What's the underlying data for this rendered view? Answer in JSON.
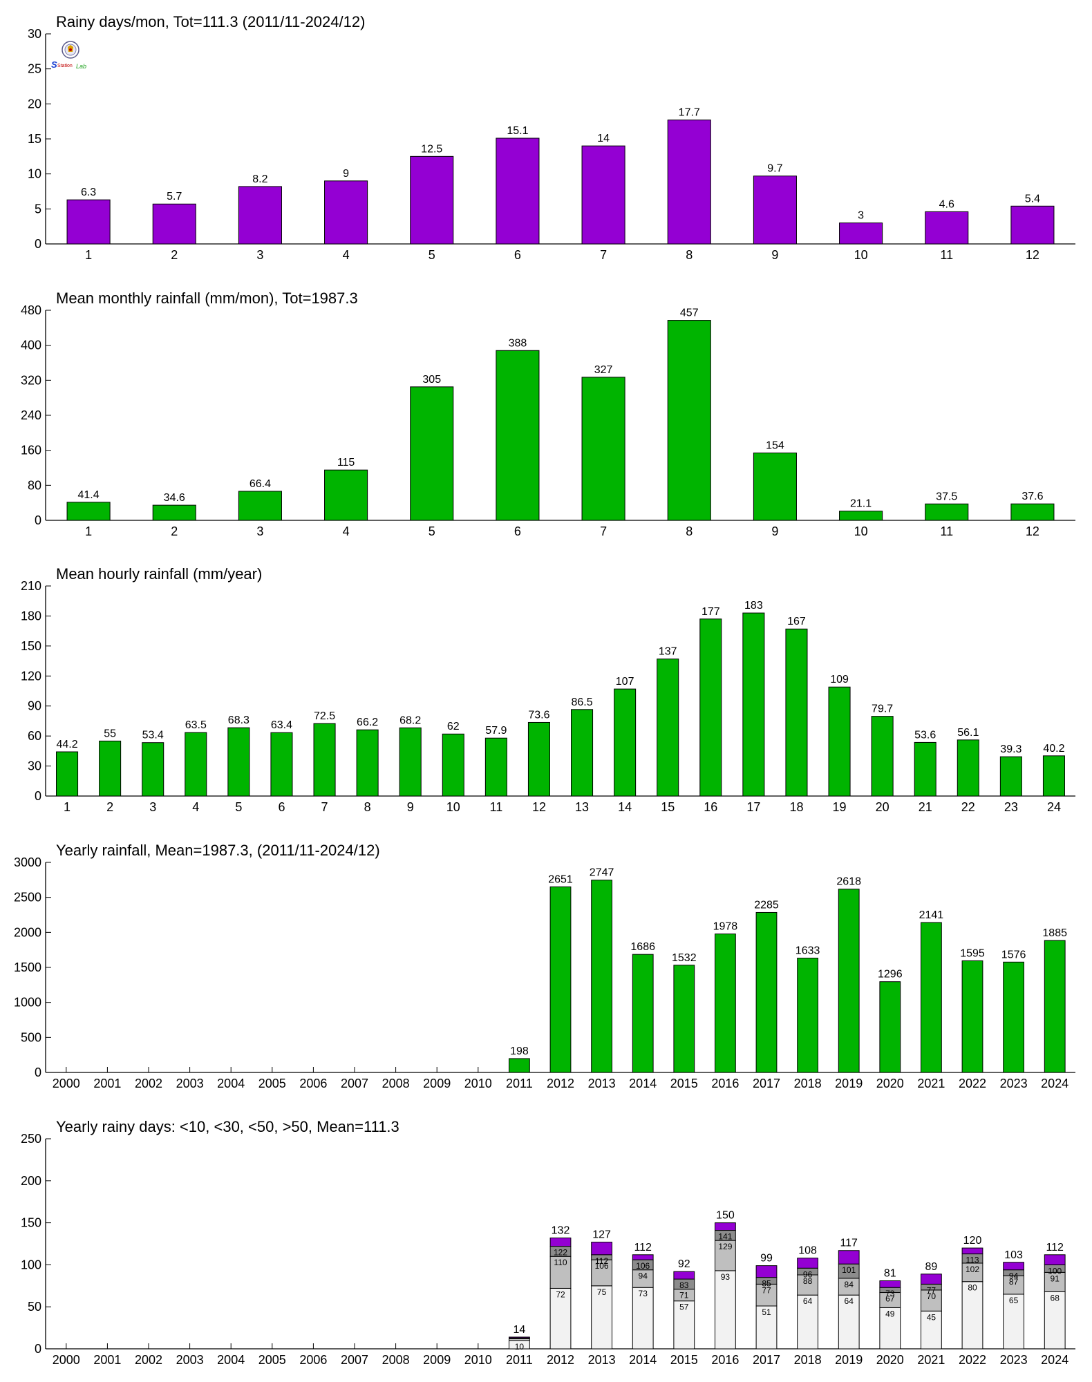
{
  "colors": {
    "purple": "#9400d3",
    "green": "#00b400",
    "cat_lt10": "#f2f2f2",
    "cat_lt30": "#bfbfbf",
    "cat_lt50": "#8c8c8c",
    "cat_gt50": "#9400d3"
  },
  "logo": {
    "icon": "station-lab-logo"
  },
  "chart_data": [
    {
      "type": "bar",
      "title": "Rainy days/mon, Tot=111.3 (2011/11-2024/12)",
      "categories": [
        "1",
        "2",
        "3",
        "4",
        "5",
        "6",
        "7",
        "8",
        "9",
        "10",
        "11",
        "12"
      ],
      "values": [
        6.3,
        5.7,
        8.2,
        9,
        12.5,
        15.1,
        14,
        17.7,
        9.7,
        3,
        4.6,
        5.4
      ],
      "value_labels": [
        "6.3",
        "5.7",
        "8.2",
        "9",
        "12.5",
        "15.1",
        "14",
        "17.7",
        "9.7",
        "3",
        "4.6",
        "5.4"
      ],
      "ylim": [
        0,
        30
      ],
      "yticks": [
        "0",
        "5",
        "10",
        "15",
        "20",
        "25",
        "30"
      ],
      "color": "#9400d3",
      "xlabel": "",
      "ylabel": ""
    },
    {
      "type": "bar",
      "title": "Mean monthly rainfall (mm/mon), Tot=1987.3",
      "categories": [
        "1",
        "2",
        "3",
        "4",
        "5",
        "6",
        "7",
        "8",
        "9",
        "10",
        "11",
        "12"
      ],
      "values": [
        41.4,
        34.6,
        66.4,
        115,
        305,
        388,
        327,
        457,
        154,
        21.1,
        37.5,
        37.6
      ],
      "value_labels": [
        "41.4",
        "34.6",
        "66.4",
        "115",
        "305",
        "388",
        "327",
        "457",
        "154",
        "21.1",
        "37.5",
        "37.6"
      ],
      "ylim": [
        0,
        480
      ],
      "yticks": [
        "0",
        "80",
        "160",
        "240",
        "320",
        "400",
        "480"
      ],
      "color": "#00b400",
      "xlabel": "",
      "ylabel": ""
    },
    {
      "type": "bar",
      "title": "Mean hourly rainfall (mm/year)",
      "categories": [
        "1",
        "2",
        "3",
        "4",
        "5",
        "6",
        "7",
        "8",
        "9",
        "10",
        "11",
        "12",
        "13",
        "14",
        "15",
        "16",
        "17",
        "18",
        "19",
        "20",
        "21",
        "22",
        "23",
        "24"
      ],
      "values": [
        44.2,
        55,
        53.4,
        63.5,
        68.3,
        63.4,
        72.5,
        66.2,
        68.2,
        62,
        57.9,
        73.6,
        86.5,
        107,
        137,
        177,
        183,
        167,
        109,
        79.7,
        53.6,
        56.1,
        39.3,
        40.2
      ],
      "value_labels": [
        "44.2",
        "55",
        "53.4",
        "63.5",
        "68.3",
        "63.4",
        "72.5",
        "66.2",
        "68.2",
        "62",
        "57.9",
        "73.6",
        "86.5",
        "107",
        "137",
        "177",
        "183",
        "167",
        "109",
        "79.7",
        "53.6",
        "56.1",
        "39.3",
        "40.2"
      ],
      "ylim": [
        0,
        210
      ],
      "yticks": [
        "0",
        "30",
        "60",
        "90",
        "120",
        "150",
        "180",
        "210"
      ],
      "color": "#00b400",
      "xlabel": "",
      "ylabel": ""
    },
    {
      "type": "bar",
      "title": "Yearly rainfall, Mean=1987.3, (2011/11-2024/12)",
      "categories": [
        "2000",
        "2001",
        "2002",
        "2003",
        "2004",
        "2005",
        "2006",
        "2007",
        "2008",
        "2009",
        "2010",
        "2011",
        "2012",
        "2013",
        "2014",
        "2015",
        "2016",
        "2017",
        "2018",
        "2019",
        "2020",
        "2021",
        "2022",
        "2023",
        "2024"
      ],
      "values": [
        null,
        null,
        null,
        null,
        null,
        null,
        null,
        null,
        null,
        null,
        null,
        198,
        2651,
        2747,
        1686,
        1532,
        1978,
        2285,
        1633,
        2618,
        1296,
        2141,
        1595,
        1576,
        1885
      ],
      "value_labels": [
        "",
        "",
        "",
        "",
        "",
        "",
        "",
        "",
        "",
        "",
        "",
        "198",
        "2651",
        "2747",
        "1686",
        "1532",
        "1978",
        "2285",
        "1633",
        "2618",
        "1296",
        "2141",
        "1595",
        "1576",
        "1885"
      ],
      "ylim": [
        0,
        3000
      ],
      "yticks": [
        "0",
        "500",
        "1000",
        "1500",
        "2000",
        "2500",
        "3000"
      ],
      "color": "#00b400",
      "xlabel": "",
      "ylabel": ""
    },
    {
      "type": "bar",
      "stacked": true,
      "title": "Yearly rainy days: <10, <30, <50, >50, Mean=111.3",
      "categories": [
        "2000",
        "2001",
        "2002",
        "2003",
        "2004",
        "2005",
        "2006",
        "2007",
        "2008",
        "2009",
        "2010",
        "2011",
        "2012",
        "2013",
        "2014",
        "2015",
        "2016",
        "2017",
        "2018",
        "2019",
        "2020",
        "2021",
        "2022",
        "2023",
        "2024"
      ],
      "cumulative": [
        null,
        null,
        null,
        null,
        null,
        null,
        null,
        null,
        null,
        null,
        null,
        [
          10,
          12,
          13,
          14
        ],
        [
          72,
          110,
          122,
          132
        ],
        [
          75,
          106,
          112,
          127
        ],
        [
          73,
          94,
          106,
          112
        ],
        [
          57,
          71,
          83,
          92
        ],
        [
          93,
          129,
          141,
          150
        ],
        [
          51,
          77,
          85,
          99
        ],
        [
          64,
          88,
          96,
          108
        ],
        [
          64,
          84,
          101,
          117
        ],
        [
          49,
          67,
          73,
          81
        ],
        [
          45,
          70,
          77,
          89
        ],
        [
          80,
          102,
          113,
          120
        ],
        [
          65,
          87,
          94,
          103
        ],
        [
          68,
          91,
          100,
          112
        ]
      ],
      "segment_labels": [
        null,
        null,
        null,
        null,
        null,
        null,
        null,
        null,
        null,
        null,
        null,
        [
          "10",
          "",
          "",
          ""
        ],
        [
          "72",
          "110",
          "122",
          ""
        ],
        [
          "75",
          "106",
          "112",
          ""
        ],
        [
          "73",
          "94",
          "106",
          ""
        ],
        [
          "57",
          "71",
          "83",
          ""
        ],
        [
          "93",
          "129",
          "141",
          ""
        ],
        [
          "51",
          "77",
          "85",
          ""
        ],
        [
          "64",
          "88",
          "96",
          ""
        ],
        [
          "64",
          "84",
          "101",
          ""
        ],
        [
          "49",
          "67",
          "73",
          ""
        ],
        [
          "45",
          "70",
          "77",
          ""
        ],
        [
          "80",
          "102",
          "113",
          ""
        ],
        [
          "65",
          "87",
          "94",
          ""
        ],
        [
          "68",
          "91",
          "100",
          ""
        ]
      ],
      "total_labels": [
        "",
        "",
        "",
        "",
        "",
        "",
        "",
        "",
        "",
        "",
        "",
        "14",
        "132",
        "127",
        "112",
        "92",
        "150",
        "99",
        "108",
        "117",
        "81",
        "89",
        "120",
        "103",
        "112"
      ],
      "ylim": [
        0,
        250
      ],
      "yticks": [
        "0",
        "50",
        "100",
        "150",
        "200",
        "250"
      ],
      "xlabel": "",
      "ylabel": ""
    }
  ]
}
